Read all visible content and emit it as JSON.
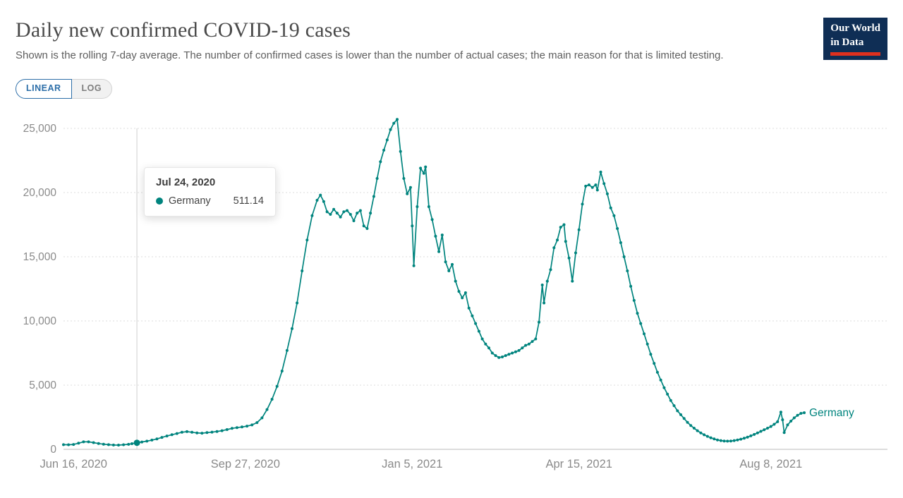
{
  "header": {
    "title": "Daily new confirmed COVID-19 cases",
    "subtitle": "Shown is the rolling 7-day average. The number of confirmed cases is lower than the number of actual cases; the main reason for that is limited testing.",
    "logo": {
      "line1": "Our World",
      "line2": "in Data"
    }
  },
  "controls": {
    "linear_label": "LINEAR",
    "log_label": "LOG"
  },
  "tooltip": {
    "date": "Jul 24, 2020",
    "series": "Germany",
    "value": "511.14"
  },
  "colors": {
    "line": "#00847E",
    "accent_blue": "#2c6ea8",
    "logo_bg": "#0f2e55",
    "logo_red": "#e0301e",
    "axis_text": "#8a8a8a",
    "gridline": "#dedede"
  },
  "chart_data": {
    "type": "line",
    "title": "Daily new confirmed COVID-19 cases",
    "series_name": "Germany",
    "xlabel": "",
    "ylabel": "",
    "grid": true,
    "ylim": [
      0,
      25000
    ],
    "yticks": [
      0,
      5000,
      10000,
      15000,
      20000,
      25000
    ],
    "ytick_labels": [
      "0",
      "5,000",
      "10,000",
      "15,000",
      "20,000",
      "25,000"
    ],
    "xticks": [
      {
        "date": "2020-06-16",
        "label": "Jun 16, 2020"
      },
      {
        "date": "2020-09-27",
        "label": "Sep 27, 2020"
      },
      {
        "date": "2021-01-05",
        "label": "Jan 5, 2021"
      },
      {
        "date": "2021-04-15",
        "label": "Apr 15, 2021"
      },
      {
        "date": "2021-08-08",
        "label": "Aug 8, 2021"
      }
    ],
    "highlight": {
      "date": "2020-07-24",
      "value": 511.14
    },
    "points": [
      [
        "2020-06-10",
        360
      ],
      [
        "2020-06-13",
        355
      ],
      [
        "2020-06-16",
        380
      ],
      [
        "2020-06-19",
        480
      ],
      [
        "2020-06-22",
        580
      ],
      [
        "2020-06-25",
        580
      ],
      [
        "2020-06-28",
        520
      ],
      [
        "2020-07-01",
        450
      ],
      [
        "2020-07-04",
        400
      ],
      [
        "2020-07-07",
        360
      ],
      [
        "2020-07-10",
        335
      ],
      [
        "2020-07-13",
        330
      ],
      [
        "2020-07-16",
        355
      ],
      [
        "2020-07-19",
        390
      ],
      [
        "2020-07-21",
        440
      ],
      [
        "2020-07-24",
        511.14
      ],
      [
        "2020-07-27",
        570
      ],
      [
        "2020-07-30",
        640
      ],
      [
        "2020-08-02",
        720
      ],
      [
        "2020-08-05",
        810
      ],
      [
        "2020-08-08",
        930
      ],
      [
        "2020-08-11",
        1040
      ],
      [
        "2020-08-14",
        1140
      ],
      [
        "2020-08-17",
        1230
      ],
      [
        "2020-08-20",
        1330
      ],
      [
        "2020-08-23",
        1380
      ],
      [
        "2020-08-26",
        1330
      ],
      [
        "2020-08-29",
        1280
      ],
      [
        "2020-09-01",
        1260
      ],
      [
        "2020-09-04",
        1300
      ],
      [
        "2020-09-07",
        1340
      ],
      [
        "2020-09-10",
        1390
      ],
      [
        "2020-09-13",
        1450
      ],
      [
        "2020-09-16",
        1540
      ],
      [
        "2020-09-19",
        1630
      ],
      [
        "2020-09-22",
        1690
      ],
      [
        "2020-09-25",
        1740
      ],
      [
        "2020-09-28",
        1810
      ],
      [
        "2020-10-01",
        1900
      ],
      [
        "2020-10-04",
        2080
      ],
      [
        "2020-10-07",
        2450
      ],
      [
        "2020-10-10",
        3100
      ],
      [
        "2020-10-13",
        3900
      ],
      [
        "2020-10-16",
        4900
      ],
      [
        "2020-10-19",
        6100
      ],
      [
        "2020-10-22",
        7700
      ],
      [
        "2020-10-25",
        9400
      ],
      [
        "2020-10-28",
        11400
      ],
      [
        "2020-10-31",
        13900
      ],
      [
        "2020-11-03",
        16300
      ],
      [
        "2020-11-06",
        18200
      ],
      [
        "2020-11-09",
        19400
      ],
      [
        "2020-11-11",
        19800
      ],
      [
        "2020-11-13",
        19300
      ],
      [
        "2020-11-15",
        18500
      ],
      [
        "2020-11-17",
        18300
      ],
      [
        "2020-11-19",
        18700
      ],
      [
        "2020-11-21",
        18400
      ],
      [
        "2020-11-23",
        18100
      ],
      [
        "2020-11-25",
        18500
      ],
      [
        "2020-11-27",
        18600
      ],
      [
        "2020-11-29",
        18300
      ],
      [
        "2020-12-01",
        17800
      ],
      [
        "2020-12-03",
        18400
      ],
      [
        "2020-12-05",
        18600
      ],
      [
        "2020-12-07",
        17400
      ],
      [
        "2020-12-09",
        17200
      ],
      [
        "2020-12-11",
        18400
      ],
      [
        "2020-12-13",
        19700
      ],
      [
        "2020-12-15",
        21100
      ],
      [
        "2020-12-17",
        22400
      ],
      [
        "2020-12-19",
        23300
      ],
      [
        "2020-12-21",
        24100
      ],
      [
        "2020-12-23",
        24900
      ],
      [
        "2020-12-25",
        25400
      ],
      [
        "2020-12-27",
        25700
      ],
      [
        "2020-12-29",
        23200
      ],
      [
        "2020-12-31",
        21100
      ],
      [
        "2021-01-02",
        19900
      ],
      [
        "2021-01-04",
        20400
      ],
      [
        "2021-01-05",
        17400
      ],
      [
        "2021-01-06",
        14300
      ],
      [
        "2021-01-08",
        18900
      ],
      [
        "2021-01-10",
        21900
      ],
      [
        "2021-01-12",
        21500
      ],
      [
        "2021-01-13",
        22000
      ],
      [
        "2021-01-15",
        18900
      ],
      [
        "2021-01-17",
        17900
      ],
      [
        "2021-01-19",
        16600
      ],
      [
        "2021-01-21",
        15400
      ],
      [
        "2021-01-23",
        16700
      ],
      [
        "2021-01-25",
        14600
      ],
      [
        "2021-01-27",
        13900
      ],
      [
        "2021-01-29",
        14400
      ],
      [
        "2021-01-31",
        13100
      ],
      [
        "2021-02-02",
        12300
      ],
      [
        "2021-02-04",
        11800
      ],
      [
        "2021-02-06",
        12200
      ],
      [
        "2021-02-08",
        11000
      ],
      [
        "2021-02-10",
        10400
      ],
      [
        "2021-02-12",
        9800
      ],
      [
        "2021-02-14",
        9200
      ],
      [
        "2021-02-16",
        8600
      ],
      [
        "2021-02-18",
        8200
      ],
      [
        "2021-02-20",
        7900
      ],
      [
        "2021-02-22",
        7500
      ],
      [
        "2021-02-24",
        7300
      ],
      [
        "2021-02-26",
        7150
      ],
      [
        "2021-02-28",
        7200
      ],
      [
        "2021-03-02",
        7300
      ],
      [
        "2021-03-04",
        7400
      ],
      [
        "2021-03-06",
        7500
      ],
      [
        "2021-03-08",
        7600
      ],
      [
        "2021-03-10",
        7700
      ],
      [
        "2021-03-12",
        7900
      ],
      [
        "2021-03-14",
        8100
      ],
      [
        "2021-03-16",
        8200
      ],
      [
        "2021-03-18",
        8400
      ],
      [
        "2021-03-20",
        8600
      ],
      [
        "2021-03-22",
        9900
      ],
      [
        "2021-03-24",
        12800
      ],
      [
        "2021-03-25",
        11400
      ],
      [
        "2021-03-27",
        13100
      ],
      [
        "2021-03-29",
        14000
      ],
      [
        "2021-03-31",
        15700
      ],
      [
        "2021-04-02",
        16300
      ],
      [
        "2021-04-04",
        17300
      ],
      [
        "2021-04-06",
        17500
      ],
      [
        "2021-04-07",
        16200
      ],
      [
        "2021-04-09",
        14900
      ],
      [
        "2021-04-11",
        13100
      ],
      [
        "2021-04-13",
        15300
      ],
      [
        "2021-04-15",
        17100
      ],
      [
        "2021-04-17",
        19100
      ],
      [
        "2021-04-19",
        20500
      ],
      [
        "2021-04-21",
        20600
      ],
      [
        "2021-04-23",
        20400
      ],
      [
        "2021-04-25",
        20600
      ],
      [
        "2021-04-26",
        20200
      ],
      [
        "2021-04-28",
        21600
      ],
      [
        "2021-04-30",
        20700
      ],
      [
        "2021-05-02",
        19900
      ],
      [
        "2021-05-04",
        18800
      ],
      [
        "2021-05-06",
        18200
      ],
      [
        "2021-05-08",
        17200
      ],
      [
        "2021-05-10",
        16100
      ],
      [
        "2021-05-12",
        15000
      ],
      [
        "2021-05-14",
        13900
      ],
      [
        "2021-05-16",
        12700
      ],
      [
        "2021-05-18",
        11600
      ],
      [
        "2021-05-20",
        10600
      ],
      [
        "2021-05-22",
        9800
      ],
      [
        "2021-05-24",
        9000
      ],
      [
        "2021-05-26",
        8200
      ],
      [
        "2021-05-28",
        7400
      ],
      [
        "2021-05-30",
        6700
      ],
      [
        "2021-06-01",
        6000
      ],
      [
        "2021-06-03",
        5400
      ],
      [
        "2021-06-05",
        4800
      ],
      [
        "2021-06-07",
        4300
      ],
      [
        "2021-06-09",
        3800
      ],
      [
        "2021-06-11",
        3400
      ],
      [
        "2021-06-13",
        3000
      ],
      [
        "2021-06-15",
        2700
      ],
      [
        "2021-06-17",
        2400
      ],
      [
        "2021-06-19",
        2100
      ],
      [
        "2021-06-21",
        1850
      ],
      [
        "2021-06-23",
        1650
      ],
      [
        "2021-06-25",
        1450
      ],
      [
        "2021-06-27",
        1280
      ],
      [
        "2021-06-29",
        1130
      ],
      [
        "2021-07-01",
        1010
      ],
      [
        "2021-07-03",
        900
      ],
      [
        "2021-07-05",
        810
      ],
      [
        "2021-07-07",
        730
      ],
      [
        "2021-07-09",
        680
      ],
      [
        "2021-07-11",
        650
      ],
      [
        "2021-07-13",
        640
      ],
      [
        "2021-07-15",
        650
      ],
      [
        "2021-07-17",
        680
      ],
      [
        "2021-07-19",
        730
      ],
      [
        "2021-07-21",
        790
      ],
      [
        "2021-07-23",
        860
      ],
      [
        "2021-07-25",
        950
      ],
      [
        "2021-07-27",
        1050
      ],
      [
        "2021-07-29",
        1160
      ],
      [
        "2021-07-31",
        1280
      ],
      [
        "2021-08-02",
        1400
      ],
      [
        "2021-08-04",
        1520
      ],
      [
        "2021-08-06",
        1650
      ],
      [
        "2021-08-08",
        1780
      ],
      [
        "2021-08-10",
        1950
      ],
      [
        "2021-08-12",
        2150
      ],
      [
        "2021-08-14",
        2900
      ],
      [
        "2021-08-15",
        2300
      ],
      [
        "2021-08-16",
        1300
      ],
      [
        "2021-08-18",
        1900
      ],
      [
        "2021-08-20",
        2200
      ],
      [
        "2021-08-22",
        2450
      ],
      [
        "2021-08-24",
        2650
      ],
      [
        "2021-08-26",
        2800
      ],
      [
        "2021-08-28",
        2850
      ]
    ]
  }
}
